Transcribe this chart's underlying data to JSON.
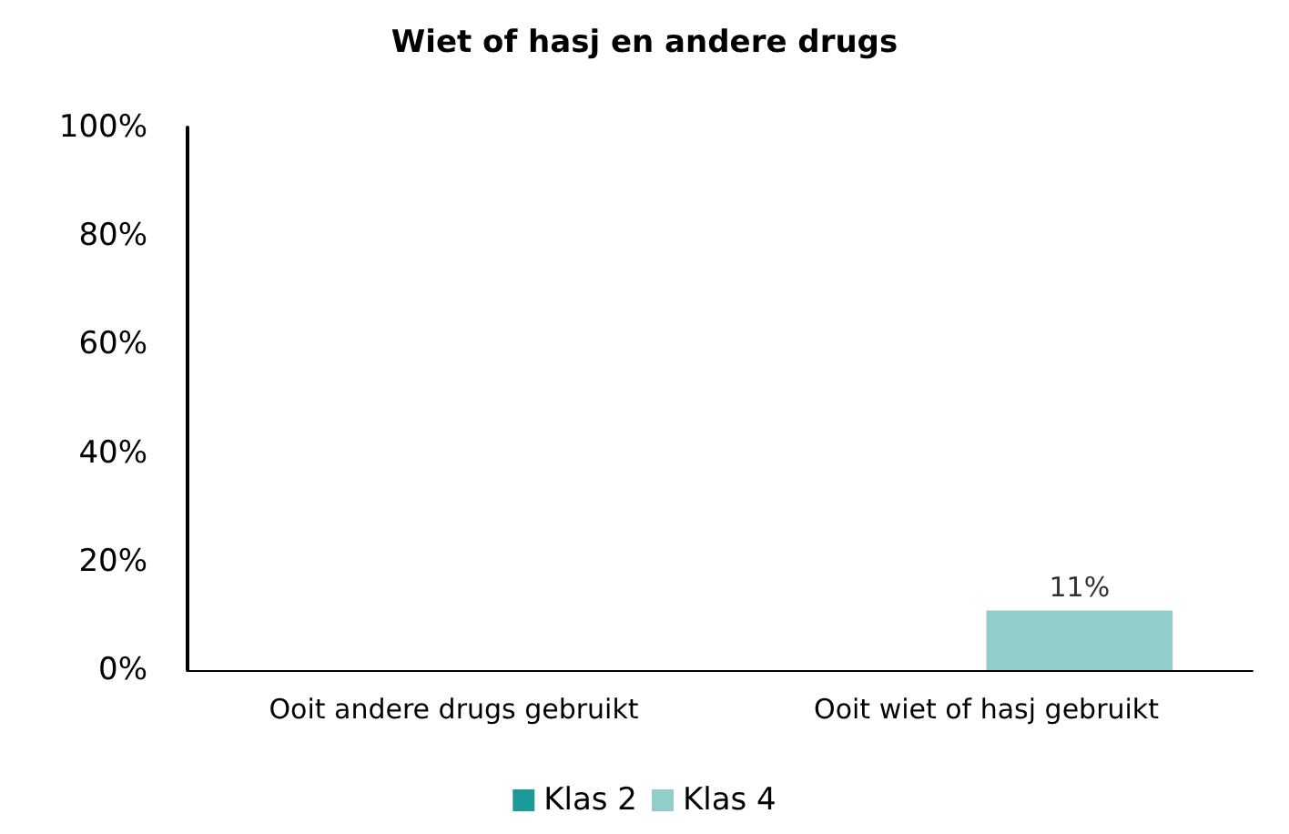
{
  "chart_data": {
    "type": "bar",
    "title": "Wiet of hasj en andere drugs",
    "categories": [
      "Ooit andere drugs gebruikt",
      "Ooit wiet of hasj gebruikt"
    ],
    "series": [
      {
        "name": "Klas 2",
        "color": "#1b9b97",
        "values": [
          null,
          null
        ]
      },
      {
        "name": "Klas 4",
        "color": "#92cdcb",
        "values": [
          null,
          11
        ],
        "value_labels": [
          null,
          "11%"
        ]
      }
    ],
    "ylim": [
      0,
      100
    ],
    "yticks": [
      {
        "value": 0,
        "label": "0%"
      },
      {
        "value": 20,
        "label": "20%"
      },
      {
        "value": 40,
        "label": "40%"
      },
      {
        "value": 60,
        "label": "60%"
      },
      {
        "value": 80,
        "label": "80%"
      },
      {
        "value": 100,
        "label": "100%"
      }
    ],
    "grid": false,
    "legend": "bottom"
  }
}
